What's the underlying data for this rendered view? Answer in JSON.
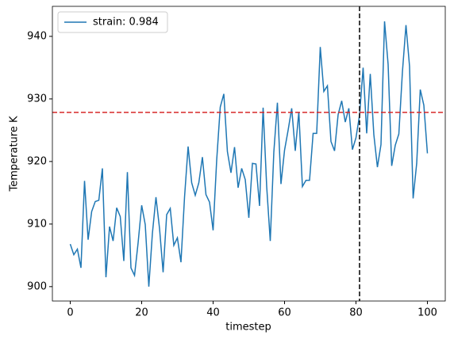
{
  "chart_data": {
    "type": "line",
    "xlabel": "timestep",
    "ylabel": "Temperature K",
    "x": [
      0,
      1,
      2,
      3,
      4,
      5,
      6,
      7,
      8,
      9,
      10,
      11,
      12,
      13,
      14,
      15,
      16,
      17,
      18,
      19,
      20,
      21,
      22,
      23,
      24,
      25,
      26,
      27,
      28,
      29,
      30,
      31,
      32,
      33,
      34,
      35,
      36,
      37,
      38,
      39,
      40,
      41,
      42,
      43,
      44,
      45,
      46,
      47,
      48,
      49,
      50,
      51,
      52,
      53,
      54,
      55,
      56,
      57,
      58,
      59,
      60,
      61,
      62,
      63,
      64,
      65,
      66,
      67,
      68,
      69,
      70,
      71,
      72,
      73,
      74,
      75,
      76,
      77,
      78,
      79,
      80,
      81,
      82,
      83,
      84,
      85,
      86,
      87,
      88,
      89,
      90,
      91,
      92,
      93,
      94,
      95,
      96,
      97,
      98,
      99,
      100
    ],
    "series": [
      {
        "name": "strain: 0.984",
        "color": "#1f77b4",
        "values": [
          906.8,
          905.1,
          906.0,
          903.0,
          916.9,
          907.5,
          912.0,
          913.6,
          913.8,
          918.9,
          901.5,
          909.6,
          907.3,
          912.6,
          911.2,
          904.1,
          918.3,
          903.0,
          901.8,
          907.0,
          913.0,
          909.9,
          900.0,
          908.5,
          914.3,
          909.3,
          902.3,
          911.5,
          912.5,
          906.6,
          907.8,
          903.9,
          914.3,
          922.4,
          916.6,
          914.6,
          916.6,
          920.7,
          914.7,
          913.5,
          909.0,
          920.2,
          928.7,
          930.8,
          921.6,
          918.2,
          922.3,
          915.8,
          918.9,
          917.1,
          911.0,
          919.7,
          919.6,
          912.9,
          928.6,
          916.0,
          907.3,
          921.5,
          929.4,
          916.4,
          921.8,
          925.0,
          928.5,
          921.7,
          927.9,
          916.0,
          917.0,
          917.0,
          924.5,
          924.5,
          938.3,
          931.2,
          932.1,
          923.2,
          921.7,
          927.5,
          929.7,
          926.3,
          928.5,
          921.9,
          923.8,
          927.4,
          935.0,
          924.5,
          934.0,
          924.3,
          919.1,
          922.7,
          942.4,
          935.5,
          919.3,
          922.6,
          924.4,
          934.3,
          941.8,
          935.2,
          914.1,
          919.7,
          931.5,
          929.0,
          921.3
        ]
      }
    ],
    "hline": {
      "value": 927.85,
      "color": "#d62728"
    },
    "vline": {
      "value": 81,
      "color": "#000000"
    },
    "xlim": [
      -5,
      105
    ],
    "xticks": [
      0,
      20,
      40,
      60,
      80,
      100
    ],
    "ylim": [
      897.7,
      944.8
    ],
    "yticks": [
      900,
      910,
      920,
      930,
      940
    ],
    "legend": "upper left"
  }
}
